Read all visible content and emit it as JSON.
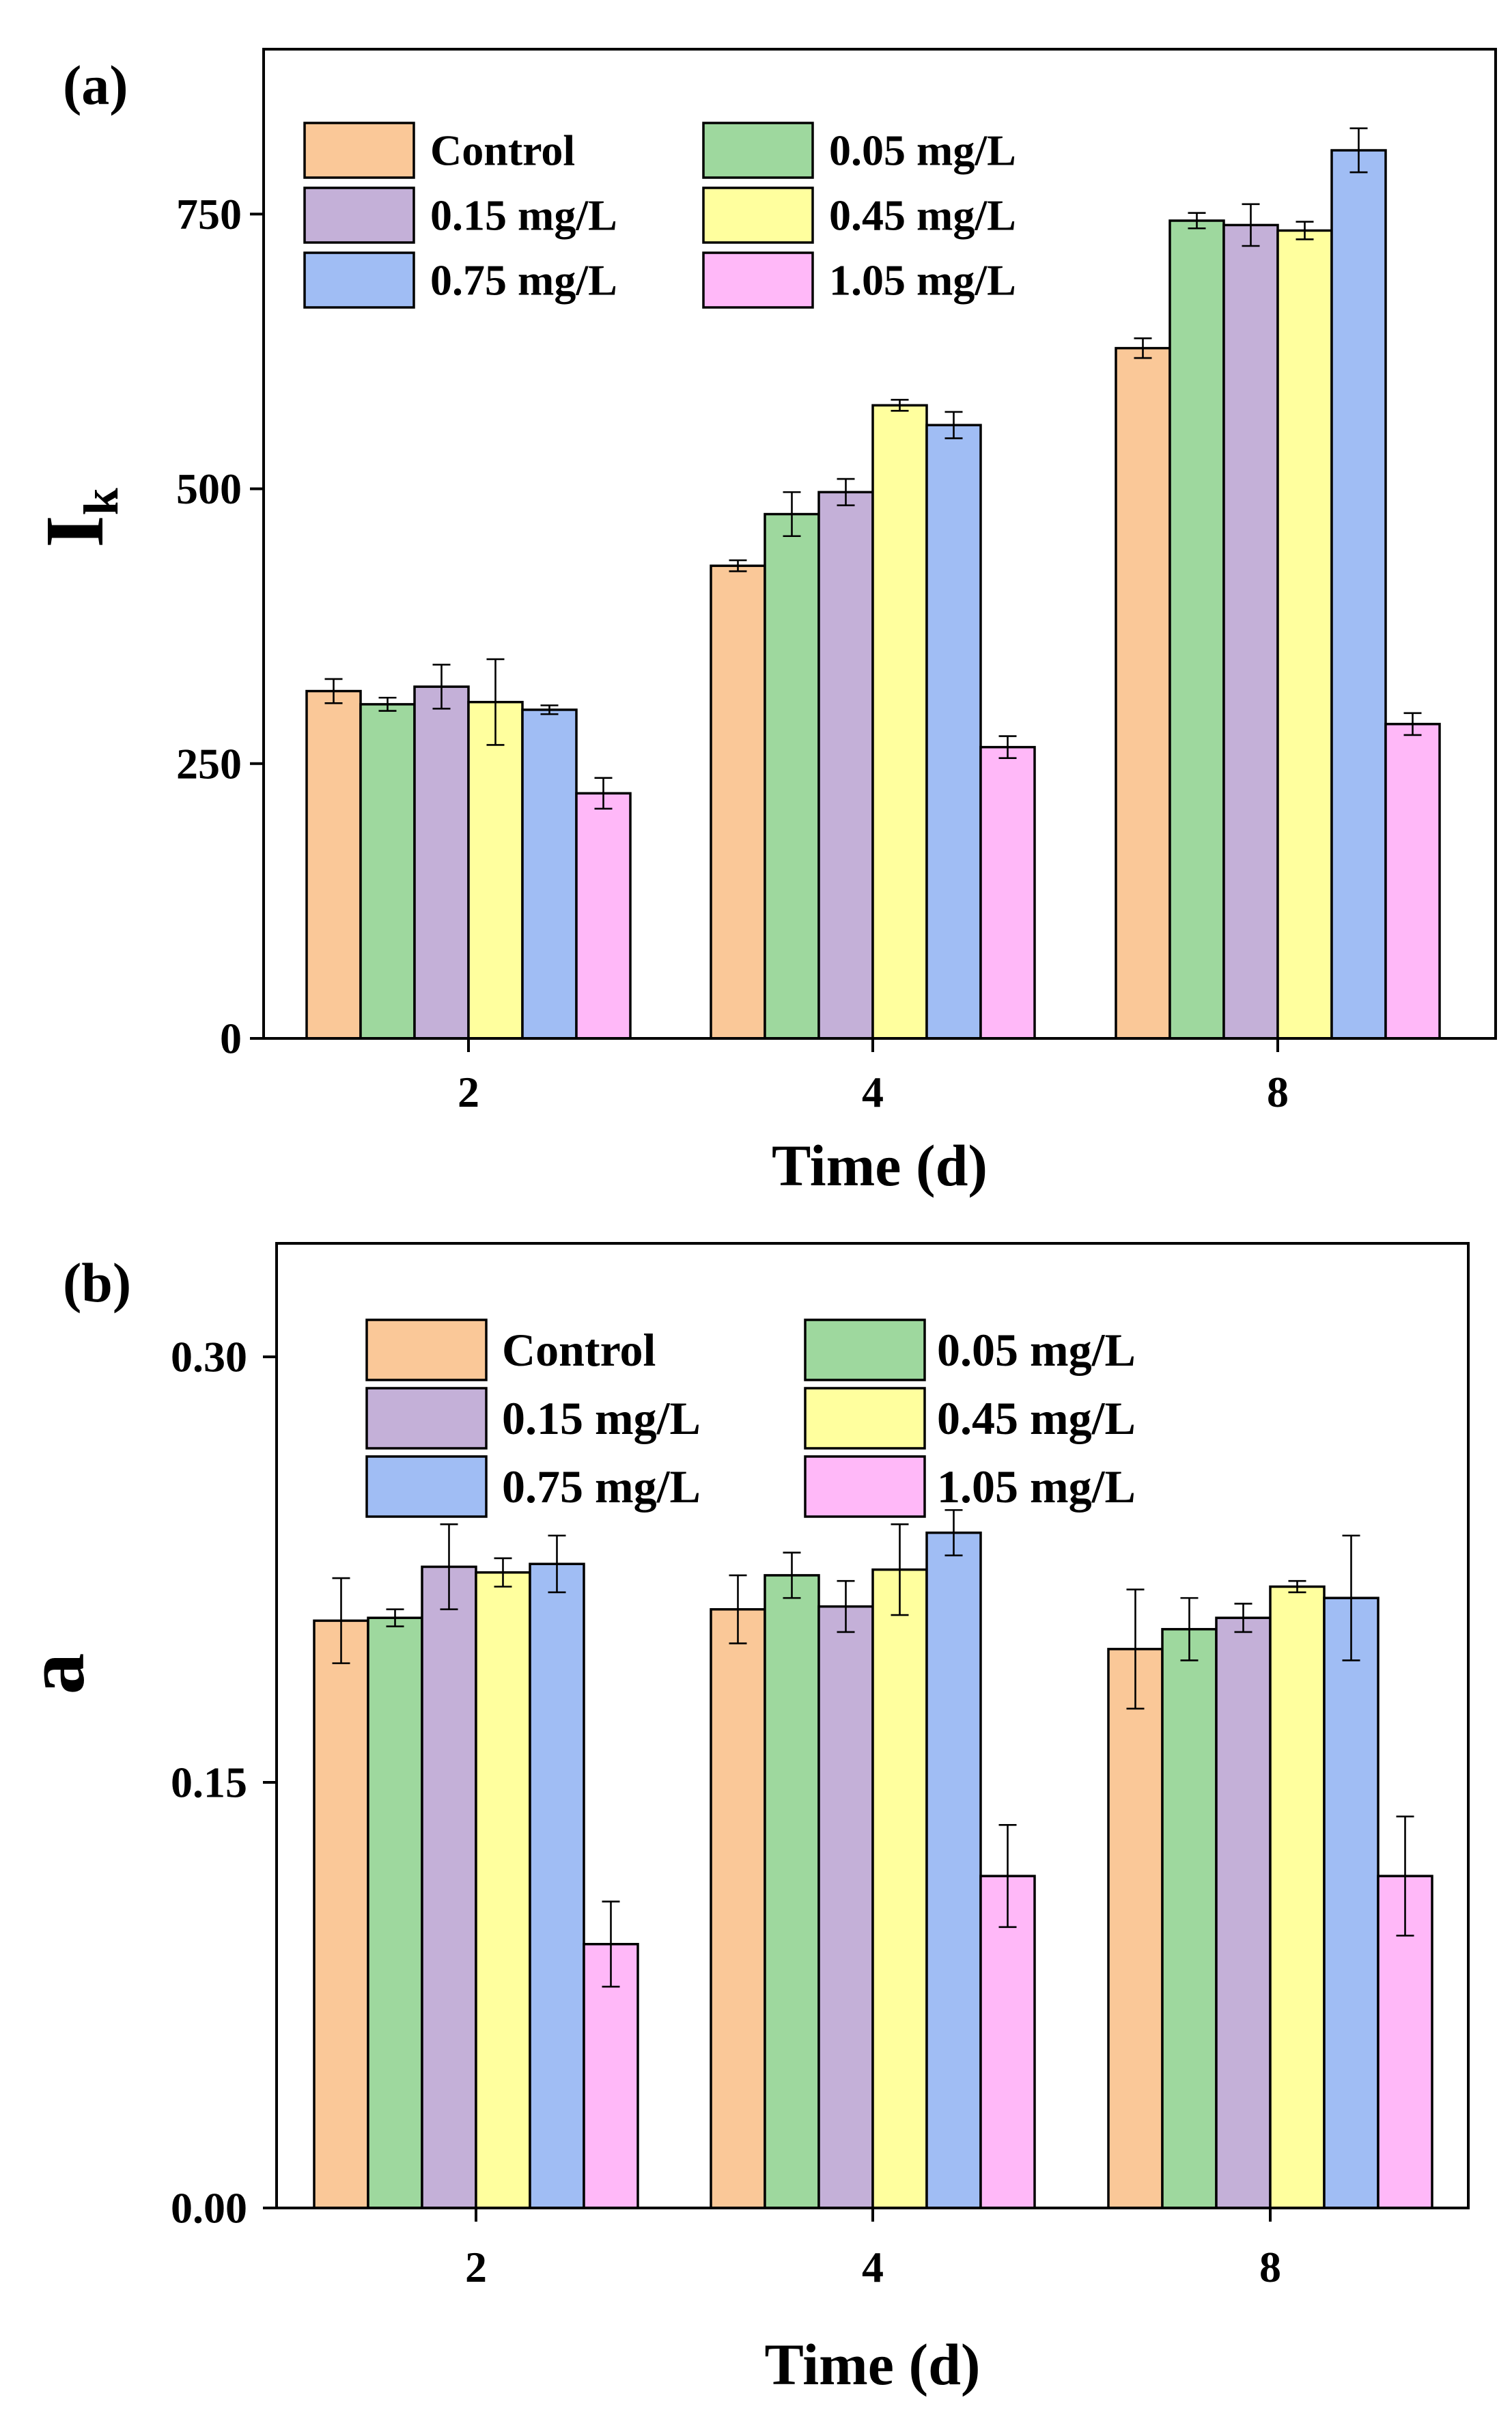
{
  "colors": {
    "Control": "#FAC898",
    "0.05 mg/L": "#9ED89E",
    "0.15 mg/L": "#C4B0D8",
    "0.45 mg/L": "#FFFF9E",
    "0.75 mg/L": "#A0BDF4",
    "1.05 mg/L": "#FFB8F8"
  },
  "chart_data": [
    {
      "type": "bar",
      "panel_label": "(a)",
      "xlabel": "Time (d)",
      "ylabel": "I",
      "ylabel_sub": "k",
      "categories": [
        "2",
        "4",
        "8"
      ],
      "ylim": [
        0,
        900
      ],
      "yticks": [
        0,
        250,
        500,
        750
      ],
      "ytick_labels": [
        "0",
        "250",
        "500",
        "750"
      ],
      "legend_position": "top-left",
      "series": [
        {
          "name": "Control",
          "values": [
            316,
            430,
            628
          ],
          "errors": [
            11,
            5,
            9
          ]
        },
        {
          "name": "0.05 mg/L",
          "values": [
            304,
            477,
            744
          ],
          "errors": [
            6,
            20,
            7
          ]
        },
        {
          "name": "0.15 mg/L",
          "values": [
            320,
            497,
            740
          ],
          "errors": [
            20,
            12,
            19
          ]
        },
        {
          "name": "0.45 mg/L",
          "values": [
            306,
            576,
            735
          ],
          "errors": [
            39,
            5,
            8
          ]
        },
        {
          "name": "0.75 mg/L",
          "values": [
            299,
            558,
            808
          ],
          "errors": [
            4,
            12,
            20
          ]
        },
        {
          "name": "1.05 mg/L",
          "values": [
            223,
            265,
            286
          ],
          "errors": [
            14,
            10,
            10
          ]
        }
      ]
    },
    {
      "type": "bar",
      "panel_label": "(b)",
      "xlabel": "Time (d)",
      "ylabel": "a",
      "categories": [
        "2",
        "4",
        "8"
      ],
      "ylim": [
        0,
        0.34
      ],
      "yticks": [
        0,
        0.15,
        0.3
      ],
      "ytick_labels": [
        "0.00",
        "0.15",
        "0.30"
      ],
      "legend_position": "top-center",
      "series": [
        {
          "name": "Control",
          "values": [
            0.207,
            0.211,
            0.197
          ],
          "errors": [
            0.015,
            0.012,
            0.021
          ]
        },
        {
          "name": "0.05 mg/L",
          "values": [
            0.208,
            0.223,
            0.204
          ],
          "errors": [
            0.003,
            0.008,
            0.011
          ]
        },
        {
          "name": "0.15 mg/L",
          "values": [
            0.226,
            0.212,
            0.208
          ],
          "errors": [
            0.015,
            0.009,
            0.005
          ]
        },
        {
          "name": "0.45 mg/L",
          "values": [
            0.224,
            0.225,
            0.219
          ],
          "errors": [
            0.005,
            0.016,
            0.002
          ]
        },
        {
          "name": "0.75 mg/L",
          "values": [
            0.227,
            0.238,
            0.215
          ],
          "errors": [
            0.01,
            0.008,
            0.022
          ]
        },
        {
          "name": "1.05 mg/L",
          "values": [
            0.093,
            0.117,
            0.117
          ],
          "errors": [
            0.015,
            0.018,
            0.021
          ]
        }
      ]
    }
  ]
}
